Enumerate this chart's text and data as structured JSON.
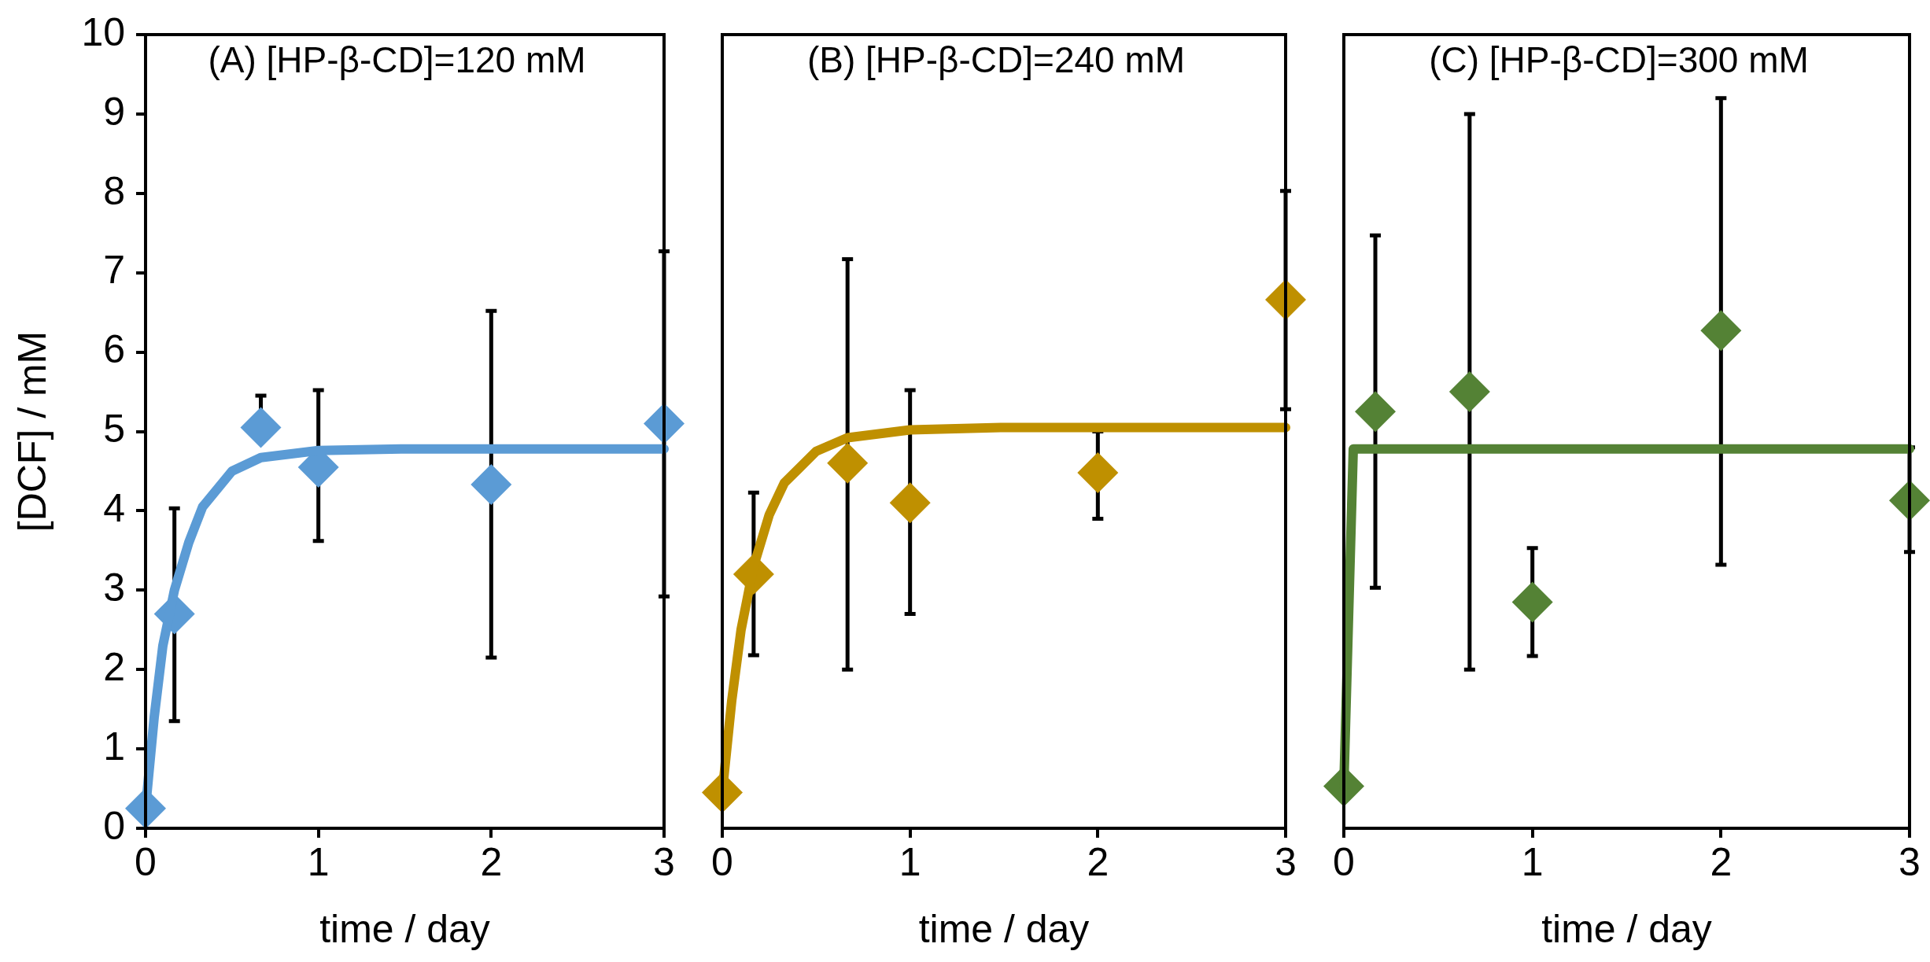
{
  "chart_data": [
    {
      "type": "scatter",
      "title": "(A) [HP-β-CD]=120 mM",
      "xlabel": "time / day",
      "ylabel": "[DCF] / mM",
      "xlim": [
        0,
        3
      ],
      "xticks": [
        0,
        1,
        2,
        3
      ],
      "ylim": [
        0,
        10
      ],
      "yticks": [
        0,
        1,
        2,
        3,
        4,
        5,
        6,
        7,
        8,
        9,
        10
      ],
      "grid": false,
      "legend": false,
      "series": [
        {
          "type": "scatter",
          "marker": "diamond",
          "color": "#5b9bd5",
          "x": [
            0,
            0.167,
            0.667,
            1,
            2,
            3
          ],
          "values": [
            0.25,
            2.7,
            5.05,
            4.55,
            4.33,
            5.1
          ],
          "errors": [
            null,
            [
              1.35,
              4.03
            ],
            [
              5.05,
              5.45
            ],
            [
              3.62,
              5.52
            ],
            [
              2.15,
              6.52
            ],
            [
              2.92,
              7.27
            ]
          ]
        },
        {
          "type": "line",
          "marker": "none",
          "color": "#5b9bd5",
          "x": [
            0,
            0.05,
            0.1,
            0.167,
            0.25,
            0.33,
            0.5,
            0.667,
            1,
            1.5,
            3
          ],
          "values": [
            0.25,
            1.4,
            2.3,
            3.0,
            3.6,
            4.05,
            4.5,
            4.67,
            4.76,
            4.78,
            4.78
          ]
        }
      ]
    },
    {
      "type": "scatter",
      "title": "(B) [HP-β-CD]=240 mM",
      "xlabel": "time / day",
      "xlim": [
        0,
        3
      ],
      "xticks": [
        0,
        1,
        2,
        3
      ],
      "ylim": [
        0,
        10
      ],
      "grid": false,
      "legend": false,
      "tick_labels": "x",
      "series": [
        {
          "type": "scatter",
          "marker": "diamond",
          "color": "#bf9000",
          "x": [
            0,
            0.167,
            0.667,
            1,
            2,
            3
          ],
          "values": [
            0.45,
            3.2,
            4.6,
            4.1,
            4.48,
            6.66
          ],
          "errors": [
            null,
            [
              2.18,
              4.23
            ],
            [
              2.0,
              7.17
            ],
            [
              2.7,
              5.52
            ],
            [
              3.9,
              5.0
            ],
            [
              5.28,
              8.03
            ]
          ]
        },
        {
          "type": "line",
          "marker": "none",
          "color": "#bf9000",
          "x": [
            0,
            0.05,
            0.1,
            0.167,
            0.25,
            0.33,
            0.5,
            0.667,
            1,
            1.5,
            3
          ],
          "values": [
            0.45,
            1.6,
            2.5,
            3.3,
            3.95,
            4.35,
            4.75,
            4.92,
            5.02,
            5.05,
            5.05
          ]
        }
      ]
    },
    {
      "type": "scatter",
      "title": "(C) [HP-β-CD]=300 mM",
      "xlabel": "time / day",
      "xlim": [
        0,
        3
      ],
      "xticks": [
        0,
        1,
        2,
        3
      ],
      "ylim": [
        0,
        10
      ],
      "grid": false,
      "legend": false,
      "tick_labels": "x",
      "series": [
        {
          "type": "scatter",
          "marker": "diamond",
          "color": "#548235",
          "x": [
            0,
            0.167,
            0.667,
            1,
            2,
            3
          ],
          "values": [
            0.53,
            5.25,
            5.5,
            2.85,
            6.27,
            4.13
          ],
          "errors": [
            null,
            [
              3.03,
              7.47
            ],
            [
              2.0,
              9.0
            ],
            [
              2.17,
              3.53
            ],
            [
              3.32,
              9.2
            ],
            [
              3.48,
              4.8
            ]
          ]
        },
        {
          "type": "line",
          "marker": "none",
          "color": "#548235",
          "x": [
            0,
            0.05,
            3
          ],
          "values": [
            0.53,
            4.78,
            4.78
          ]
        }
      ]
    }
  ]
}
